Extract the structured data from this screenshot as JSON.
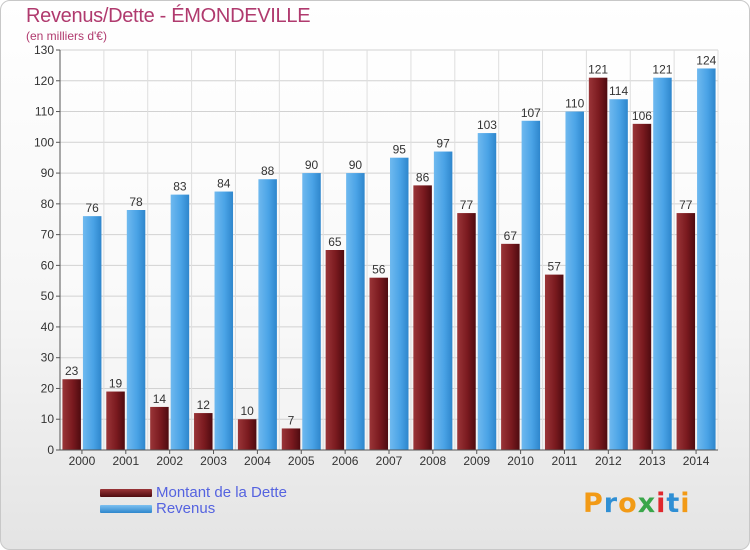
{
  "header": {
    "title": "Revenus/Dette - ÉMONDEVILLE",
    "subtitle": "(en milliers d'€)"
  },
  "chart_data": {
    "type": "bar",
    "categories": [
      "2000",
      "2001",
      "2002",
      "2003",
      "2004",
      "2005",
      "2006",
      "2007",
      "2008",
      "2009",
      "2010",
      "2011",
      "2012",
      "2013",
      "2014"
    ],
    "series": [
      {
        "name": "Montant de la Dette",
        "values": [
          23,
          19,
          14,
          12,
          10,
          7,
          65,
          56,
          86,
          77,
          67,
          57,
          121,
          106,
          77
        ],
        "color": "#7a1a1f"
      },
      {
        "name": "Revenus",
        "values": [
          76,
          78,
          83,
          84,
          88,
          90,
          90,
          95,
          97,
          103,
          107,
          110,
          114,
          121,
          124
        ],
        "color": "#4aa3e6"
      }
    ],
    "title": "Revenus/Dette - ÉMONDEVILLE",
    "ylabel": "(en milliers d'€)",
    "ylim": [
      0,
      130
    ],
    "yticks": [
      0,
      10,
      20,
      30,
      40,
      50,
      60,
      70,
      80,
      90,
      100,
      110,
      120,
      130
    ],
    "grid": true,
    "legend": "bottom-left"
  },
  "legend": {
    "items": [
      {
        "label": "Montant de la Dette",
        "color": "#7a1a1f"
      },
      {
        "label": "Revenus",
        "color": "#4aa3e6"
      }
    ]
  },
  "logo": {
    "text": "Proxiti",
    "colors": [
      "#f29a16",
      "#2f8fd4",
      "#f29a16",
      "#3aa64a",
      "#e0282d",
      "#2f8fd4",
      "#f29a16"
    ]
  }
}
